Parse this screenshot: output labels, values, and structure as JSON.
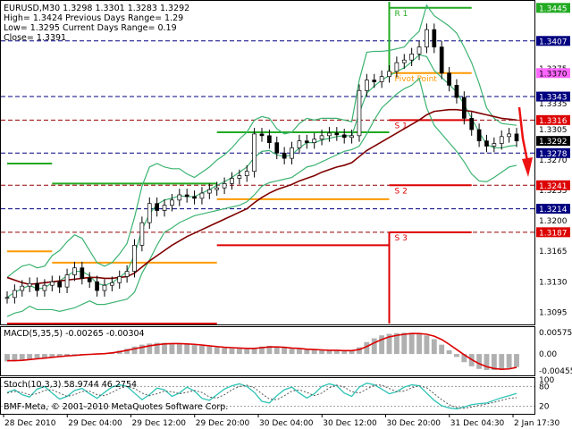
{
  "header": {
    "line1": "EURUSD,M30  1.3298 1.3301 1.3283 1.3292",
    "line2": "High= 1.3424    Previous Days Range= 1.29",
    "line3": "Low= 1.3295     Current Days Range= 0.19",
    "line4": "Close= 1.3391"
  },
  "colors": {
    "bollinger": "#3cb371",
    "ma": "#800000",
    "resistance": "#22aa22",
    "support": "#dd0000",
    "pivot": "#ff9900",
    "macd_line": "#dd0000",
    "macd_hist": "#b0b0b0",
    "stoch_main": "#2ec4b6",
    "stoch_signal": "#555555",
    "arrow": "#ee1111"
  },
  "chart_data": {
    "type": "line",
    "symbol": "EURUSD",
    "timeframe": "M30",
    "x_labels": [
      "28 Dec 2010",
      "29 Dec 04:00",
      "29 Dec 12:00",
      "29 Dec 20:00",
      "30 Dec 04:00",
      "30 Dec 12:00",
      "30 Dec 20:00",
      "31 Dec 04:30",
      "2 Jan 17:30"
    ],
    "price_axis": {
      "ylim": [
        1.3082,
        1.3452
      ],
      "ticks": [
        1.3405,
        1.3375,
        1.3335,
        1.3305,
        1.327,
        1.3235,
        1.32,
        1.3165,
        1.313,
        1.3095
      ]
    },
    "levels": [
      {
        "label": "R 1",
        "value": 1.3445,
        "color": "#22aa22"
      },
      {
        "label": "Pivot Point",
        "value": 1.337,
        "color": "#ff9900"
      },
      {
        "label": "S 1",
        "value": 1.3316,
        "color": "#dd0000"
      },
      {
        "label": "S 2",
        "value": 1.3241,
        "color": "#dd0000"
      },
      {
        "label": "S 3",
        "value": 1.3187,
        "color": "#dd0000"
      }
    ],
    "price_tags": [
      {
        "value": 1.3445,
        "text": "1.3445",
        "bg": "#22aa22",
        "fg": "#ffffff"
      },
      {
        "value": 1.3407,
        "text": "1.3407",
        "bg": "#000080",
        "fg": "#ffffff"
      },
      {
        "value": 1.337,
        "text": "1.3370",
        "bg": "#ff66ff",
        "fg": "#000000"
      },
      {
        "value": 1.3343,
        "text": "1.3343",
        "bg": "#000080",
        "fg": "#ffffff"
      },
      {
        "value": 1.3316,
        "text": "1.3316",
        "bg": "#dd0000",
        "fg": "#ffffff"
      },
      {
        "value": 1.3292,
        "text": "1.3292",
        "bg": "#000000",
        "fg": "#ffffff"
      },
      {
        "value": 1.3278,
        "text": "1.3278",
        "bg": "#000080",
        "fg": "#ffffff"
      },
      {
        "value": 1.3241,
        "text": "1.3241",
        "bg": "#dd0000",
        "fg": "#ffffff"
      },
      {
        "value": 1.3214,
        "text": "1.3214",
        "bg": "#000080",
        "fg": "#ffffff"
      },
      {
        "value": 1.3187,
        "text": "1.3187",
        "bg": "#dd0000",
        "fg": "#ffffff"
      }
    ],
    "blue_dash_levels": [
      1.3407,
      1.3343,
      1.3278,
      1.3214
    ],
    "red_dash_levels": [
      1.3316,
      1.3241,
      1.3187
    ],
    "prices": [
      1.3112,
      1.312,
      1.3125,
      1.3128,
      1.312,
      1.3126,
      1.313,
      1.3124,
      1.3138,
      1.3146,
      1.3134,
      1.313,
      1.312,
      1.3126,
      1.3129,
      1.3136,
      1.3142,
      1.3172,
      1.3198,
      1.322,
      1.3212,
      1.3218,
      1.3224,
      1.323,
      1.3228,
      1.3226,
      1.3232,
      1.3236,
      1.3238,
      1.3243,
      1.3249,
      1.3252,
      1.3257,
      1.33,
      1.3298,
      1.329,
      1.3278,
      1.3272,
      1.3284,
      1.3292,
      1.329,
      1.3294,
      1.3298,
      1.3301,
      1.3299,
      1.3296,
      1.3298,
      1.335,
      1.3362,
      1.336,
      1.3366,
      1.3372,
      1.3382,
      1.3385,
      1.3392,
      1.34,
      1.342,
      1.34,
      1.337,
      1.3356,
      1.3342,
      1.3318,
      1.3305,
      1.3292,
      1.3286,
      1.3289,
      1.3297,
      1.33,
      1.3292
    ],
    "bollinger": {
      "upper": [
        1.3135,
        1.3142,
        1.3148,
        1.315,
        1.3146,
        1.3148,
        1.316,
        1.3166,
        1.3176,
        1.3184,
        1.318,
        1.3166,
        1.3152,
        1.3148,
        1.3152,
        1.3162,
        1.3174,
        1.3204,
        1.324,
        1.3262,
        1.3266,
        1.3262,
        1.326,
        1.326,
        1.3254,
        1.325,
        1.3256,
        1.3262,
        1.327,
        1.3276,
        1.3284,
        1.3294,
        1.3302,
        1.3316,
        1.332,
        1.3318,
        1.3306,
        1.33,
        1.3302,
        1.3312,
        1.3318,
        1.3316,
        1.3318,
        1.3318,
        1.3318,
        1.3316,
        1.3314,
        1.3362,
        1.3394,
        1.3395,
        1.3395,
        1.3396,
        1.3398,
        1.34,
        1.341,
        1.3418,
        1.3448,
        1.3436,
        1.343,
        1.3424,
        1.3416,
        1.34,
        1.3382,
        1.3358,
        1.333,
        1.3318,
        1.3312,
        1.3311,
        1.331
      ],
      "lower": [
        1.309,
        1.3094,
        1.3096,
        1.3102,
        1.3098,
        1.3098,
        1.3098,
        1.3096,
        1.3098,
        1.31,
        1.3104,
        1.3108,
        1.3104,
        1.3104,
        1.3106,
        1.3108,
        1.311,
        1.3118,
        1.314,
        1.3155,
        1.3172,
        1.3187,
        1.3192,
        1.3198,
        1.3202,
        1.3206,
        1.3208,
        1.321,
        1.3212,
        1.3214,
        1.3216,
        1.3218,
        1.3222,
        1.323,
        1.324,
        1.3244,
        1.3246,
        1.3248,
        1.325,
        1.3256,
        1.3262,
        1.3264,
        1.3268,
        1.3272,
        1.3276,
        1.328,
        1.3282,
        1.3286,
        1.33,
        1.3316,
        1.333,
        1.3338,
        1.3346,
        1.3352,
        1.3356,
        1.3364,
        1.333,
        1.331,
        1.33,
        1.329,
        1.328,
        1.3268,
        1.3254,
        1.3246,
        1.3245,
        1.325,
        1.3256,
        1.3262,
        1.3264
      ],
      "middle": [
        1.3112,
        1.3118,
        1.3122,
        1.3126,
        1.3122,
        1.3123,
        1.3129,
        1.3131,
        1.3137,
        1.3142,
        1.3142,
        1.3137,
        1.3128,
        1.3126,
        1.3129,
        1.3135,
        1.3142,
        1.3161,
        1.319,
        1.3208,
        1.3219,
        1.3224,
        1.3226,
        1.3229,
        1.3228,
        1.3228,
        1.3232,
        1.3236,
        1.3241,
        1.3245,
        1.325,
        1.3256,
        1.3262,
        1.3273,
        1.328,
        1.3281,
        1.3276,
        1.3274,
        1.3276,
        1.3284,
        1.329,
        1.329,
        1.3293,
        1.3295,
        1.3297,
        1.3298,
        1.3298,
        1.3324,
        1.3347,
        1.3355,
        1.3362,
        1.3367,
        1.3372,
        1.3376,
        1.3383,
        1.3391,
        1.3389,
        1.3373,
        1.3365,
        1.3357,
        1.3348,
        1.3334,
        1.3318,
        1.3302,
        1.3288,
        1.3284,
        1.3284,
        1.3286,
        1.3287
      ]
    },
    "moving_average": [
      1.3135,
      1.3132,
      1.3129,
      1.3127,
      1.3128,
      1.3129,
      1.313,
      1.3131,
      1.3132,
      1.3133,
      1.3134,
      1.3135,
      1.3135,
      1.3134,
      1.3134,
      1.3135,
      1.3136,
      1.314,
      1.3147,
      1.3154,
      1.316,
      1.3166,
      1.3172,
      1.3177,
      1.3182,
      1.3186,
      1.319,
      1.3194,
      1.3198,
      1.3202,
      1.3206,
      1.321,
      1.3214,
      1.3221,
      1.3227,
      1.3232,
      1.3236,
      1.3239,
      1.3242,
      1.3246,
      1.3249,
      1.3252,
      1.3256,
      1.3259,
      1.3262,
      1.3264,
      1.3267,
      1.3274,
      1.3281,
      1.3286,
      1.3291,
      1.3296,
      1.3301,
      1.3306,
      1.3311,
      1.3316,
      1.3322,
      1.3326,
      1.3327,
      1.3328,
      1.3328,
      1.3327,
      1.3326,
      1.3324,
      1.3322,
      1.332,
      1.3318,
      1.3317,
      1.3316
    ],
    "pivot_segments": [
      {
        "from": 0,
        "to": 6,
        "r1": 1.3266,
        "pp": 1.3165,
        "s1": 1.3062,
        "s2": null,
        "s3": null
      },
      {
        "from": 6,
        "to": 28,
        "r1": 1.3243,
        "pp": 1.3152,
        "s1": 1.3066,
        "s2": null,
        "s3": null
      },
      {
        "from": 28,
        "to": 51,
        "r1": 1.3302,
        "pp": 1.3225,
        "s1": 1.3172,
        "s2": null,
        "s3": null
      },
      {
        "from": 51,
        "to": 62,
        "r1": 1.3445,
        "pp": 1.337,
        "s1": 1.3316,
        "s2": 1.3241,
        "s3": 1.3187
      }
    ],
    "macd": {
      "title": "MACD(5,35,5)  -0.00265  -0.00304",
      "ylim": [
        -0.0055,
        0.0065
      ],
      "ticks": [
        0.00575,
        0.0,
        -0.00455
      ],
      "tick_labels": [
        "0.00575",
        "0.00",
        "-0.00455"
      ],
      "histogram": [
        -0.002,
        -0.0019,
        -0.0018,
        -0.0016,
        -0.0014,
        -0.0012,
        -0.0009,
        -0.0007,
        -0.0005,
        -0.0003,
        -0.0001,
        0.0,
        0.0001,
        0.0002,
        0.0004,
        0.0009,
        0.0014,
        0.002,
        0.0025,
        0.0028,
        0.003,
        0.003,
        0.0029,
        0.0028,
        0.0026,
        0.0024,
        0.0022,
        0.002,
        0.0018,
        0.0016,
        0.0015,
        0.0014,
        0.0013,
        0.0016,
        0.002,
        0.0022,
        0.002,
        0.0017,
        0.0014,
        0.0013,
        0.0012,
        0.0011,
        0.001,
        0.0009,
        0.0009,
        0.0008,
        0.0008,
        0.0018,
        0.0032,
        0.0042,
        0.005,
        0.0054,
        0.0056,
        0.0057,
        0.0057,
        0.0056,
        0.005,
        0.004,
        0.0025,
        0.001,
        -0.0008,
        -0.0022,
        -0.0033,
        -0.004,
        -0.0043,
        -0.0043,
        -0.0041,
        -0.0038,
        -0.0035
      ],
      "signal": [
        -0.0018,
        -0.0018,
        -0.0017,
        -0.0015,
        -0.0013,
        -0.0011,
        -0.0009,
        -0.0007,
        -0.0005,
        -0.0004,
        -0.0002,
        -0.0001,
        0.0,
        0.0001,
        0.0003,
        0.0006,
        0.001,
        0.0014,
        0.0018,
        0.0022,
        0.0025,
        0.0027,
        0.0028,
        0.0028,
        0.0027,
        0.0026,
        0.0024,
        0.0022,
        0.002,
        0.0018,
        0.0017,
        0.0016,
        0.0015,
        0.0015,
        0.0017,
        0.0019,
        0.0019,
        0.0018,
        0.0016,
        0.0015,
        0.0013,
        0.0012,
        0.0011,
        0.001,
        0.001,
        0.0009,
        0.0009,
        0.0012,
        0.002,
        0.003,
        0.0039,
        0.0046,
        0.005,
        0.0053,
        0.0055,
        0.0055,
        0.0053,
        0.0048,
        0.0039,
        0.0026,
        0.0012,
        -0.0002,
        -0.0015,
        -0.0026,
        -0.0034,
        -0.0039,
        -0.0041,
        -0.004,
        -0.0036
      ]
    },
    "stochastic": {
      "title": "Stoch(10,3,3)  58.9744  46.2754",
      "ylim": [
        0,
        100
      ],
      "ticks": [
        100,
        80,
        20
      ],
      "main": [
        62,
        70,
        55,
        48,
        72,
        80,
        60,
        42,
        50,
        68,
        74,
        58,
        44,
        62,
        78,
        85,
        80,
        60,
        40,
        55,
        75,
        70,
        50,
        60,
        78,
        66,
        44,
        38,
        55,
        72,
        82,
        88,
        80,
        62,
        35,
        30,
        52,
        70,
        78,
        60,
        45,
        58,
        80,
        88,
        82,
        60,
        50,
        78,
        90,
        85,
        72,
        58,
        64,
        78,
        85,
        82,
        60,
        38,
        22,
        15,
        12,
        18,
        25,
        28,
        30,
        38,
        46,
        52,
        59
      ],
      "signal": [
        60,
        65,
        62,
        55,
        58,
        68,
        70,
        60,
        50,
        55,
        65,
        66,
        55,
        52,
        62,
        74,
        80,
        74,
        60,
        52,
        58,
        66,
        64,
        58,
        62,
        68,
        62,
        48,
        45,
        55,
        70,
        80,
        84,
        76,
        58,
        42,
        40,
        52,
        66,
        70,
        62,
        52,
        60,
        76,
        84,
        78,
        64,
        60,
        72,
        84,
        84,
        74,
        64,
        66,
        76,
        82,
        76,
        58,
        40,
        25,
        16,
        14,
        18,
        23,
        27,
        32,
        38,
        44,
        46
      ]
    }
  },
  "footer": {
    "copyright": "BMF-Meta, © 2001-2010 MetaQuotes Software Corp."
  }
}
